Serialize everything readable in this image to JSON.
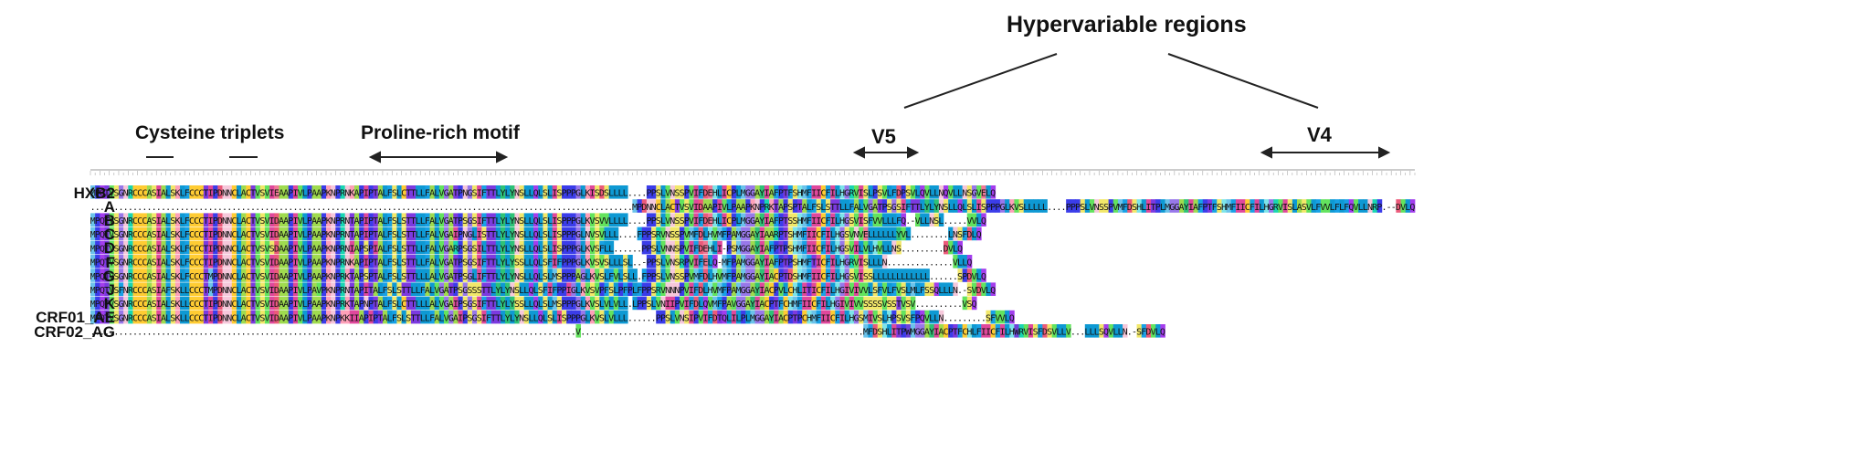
{
  "annotations": {
    "hypervariable": "Hypervariable regions",
    "cysteine": "Cysteine triplets",
    "proline": "Proline-rich motif",
    "v5": "V5",
    "v4": "V4"
  },
  "sequences": [
    {
      "name": "HXB2",
      "seq": "MPQTVSGNRCCCASIALSKLFCCCTIPDNNCLACTVSVIEAAPIVLPAAPKNPRNKAPIPTALFSLCTTLLFALVGATPNGSIFTTLYLYNSLLQLSLISPPPGLKISDSLLLL....PPSLVNSSPVIFDEHLICPLMGGAYIAFPTFSHMFIICFILHGRVISLPSVLFDPSVLQVLLNQVLLNSGVELQ"
    },
    {
      "name": "A",
      "seq": "...................................................................................................................MPDNNCLACTVSVIDAAPIVLPAAPKNPRKTAPSPTALFSLSTTLLFALVGATPSGSIFTTLYLYNSLLQLSLISPPPGLKVSLLLLL....PPPSLVNSSPVMFDSHLITPLMGGAYIAFPTFSHMFIICFILHGRVISLASVLFVVLFLFQVLLNRP.--DVLQ"
    },
    {
      "name": "B",
      "seq": "MPQTVSGNRCCCASIALSKLFCCCTIPDNNCLACTVSVIDAAPIVLPAAPKNPRNTAPIPTALFSLSTTLLFALVGATPSGSIFTTLYLYNSLLQLSLISPPPGLKVSVVLLLL....PPSLVNSSPVIFDEHLICPLMGGAYIAFPTSSHMFIICFILHGSVISFVVLLLFQ.-VLLNSL.....VVLQ"
    },
    {
      "name": "C",
      "seq": "MPQTVSGNRCCCASIALSKLFCCCTIPDNNCLACTVSVIDAAPIVLPAAPKNPRNTAPIPTALFSLSTTLLFALVGAIPNGLISTTLYLYNSLLQLSLISPPPGLNVSVLLL....FPPSRVNSSPVMFDLHVMFPAMGGAYIAARPTSHMFIICFILHGSVNVELLLLLLYVL........LNSFDLQ"
    },
    {
      "name": "D",
      "seq": "MPQTVSGNRCCCASIALSKLFCCCTIPDNNCLACTVSVSDAAPIVLPAAPKNPRNIAPSPIALFSLSTTLLFALVGARPSGSILTTLYLYNSLLQLSLISPPPGLKVSFLL......PPSLVNNSPVIFDEHLI-PSMGGAYIAFPTPSHMFIICFILHGSVILVLHVLLNS.........DVLQ"
    },
    {
      "name": "F",
      "seq": "MPQTVSGNRCCCASIALSKLFCCCTIPDNNCLACTVSVIDAAPIVLPAAPKNPRNKAPIPTALFSLSTTLLFALVGATPSGSIFTTLYLYSSLLQLSFIFPPPGLKVSVSLLLSL..-PPSLVNSRPVIFELQ-MFPAMGGAYIAFPTPSHMFTICFILHGRVISLLLN..............VLLQ"
    },
    {
      "name": "G",
      "seq": "MPQTVSGNRCCCASIALSKLFCCCTMPDNNCLACTVSVIDAAPIVLPAAPKNPRKTAPSPTALFSLSTTLLLALVGATPSGLIFTTLYLYNSLLQLSLMSPPPAGLKVSLFVLSLL.FPPSLVNSSPVMFDLHVMFPAMGGAYIACPTDSHMFIICFILHGSVISSLLLLLLLLLLLL......SPDVLQ"
    },
    {
      "name": "J",
      "seq": "MPQTVSFNRCCCASIAFSKLLCCCTMPDNNCLACTVSVIDAAPIVLPAVPKNPRNTAPITALFSLSTTLLFALVGATPSGSSSTTLYLYNSLLQLSFIFPPIGLKVSVPFSLPFPLFPPSRVNNNPVIFDLHVMFPAMGGAYIACPVLCHLITICFILHGIVIVVLSFVLFVSLMLFSSQLLLN.-SVDVLQ"
    },
    {
      "name": "K",
      "seq": "MPQTVSGNRCCCASIALSKLLCCCTIPDNNCLACTVSVIDAAPIVLPAAPKNPRKTAPNPTALFSLCTTLLLALVGAIPSGSIFTTLYLYSSLLQLSLMSPPPGLKVSLVLVLL.LPPSLVNIIPVIFDLQVMFPAVGGAYIACPTFCHMFIICFILHGIVIVVSSSSVSSTVSV..........VSQ"
    },
    {
      "name": "CRF01_AE",
      "seq": "MPQTVSGNRCCCASIALSKLLCCCTIPDNNCLACTVSVIDAAPIVLPAAPKNPKKIIAPIPTALFSLSTTLLFALVGAIPSGSIFTTLYLYNSLLQLSLISPPPGLKVSLVLLL......PPSLVNSIPVIFDTQLILPLMGGAYIACPTPCHMFIICFILHGSMIVSLHPSVSFPQVLLN.........SFVVLQ"
    },
    {
      "name": "CRF02_AG",
      "seq": ".......................................................................................................V............................................................MFDSHLITPWMGGAYIACPTFCHLFIICFILHWRVISFDSVLLV...LLLSQVLLN.-SFDVLQ"
    }
  ],
  "colors": {
    "A": "#9fdb4f",
    "C": "#ffcc33",
    "D": "#eb5a7a",
    "E": "#f07896",
    "F": "#18a1e6",
    "G": "#9878ea",
    "H": "#7de4e9",
    "I": "#e0489c",
    "K": "#fda0b8",
    "L": "#0e99d3",
    "M": "#6cc3ea",
    "N": "#f6c8db",
    "P": "#3b3de9",
    "Q": "#a33ded",
    "R": "#19d6b2",
    "S": "#f2e86a",
    "T": "#7c3ae0",
    "V": "#63e35e",
    "W": "#6e42d8",
    "Y": "#2ec276",
    "gap": "#ffffff"
  }
}
